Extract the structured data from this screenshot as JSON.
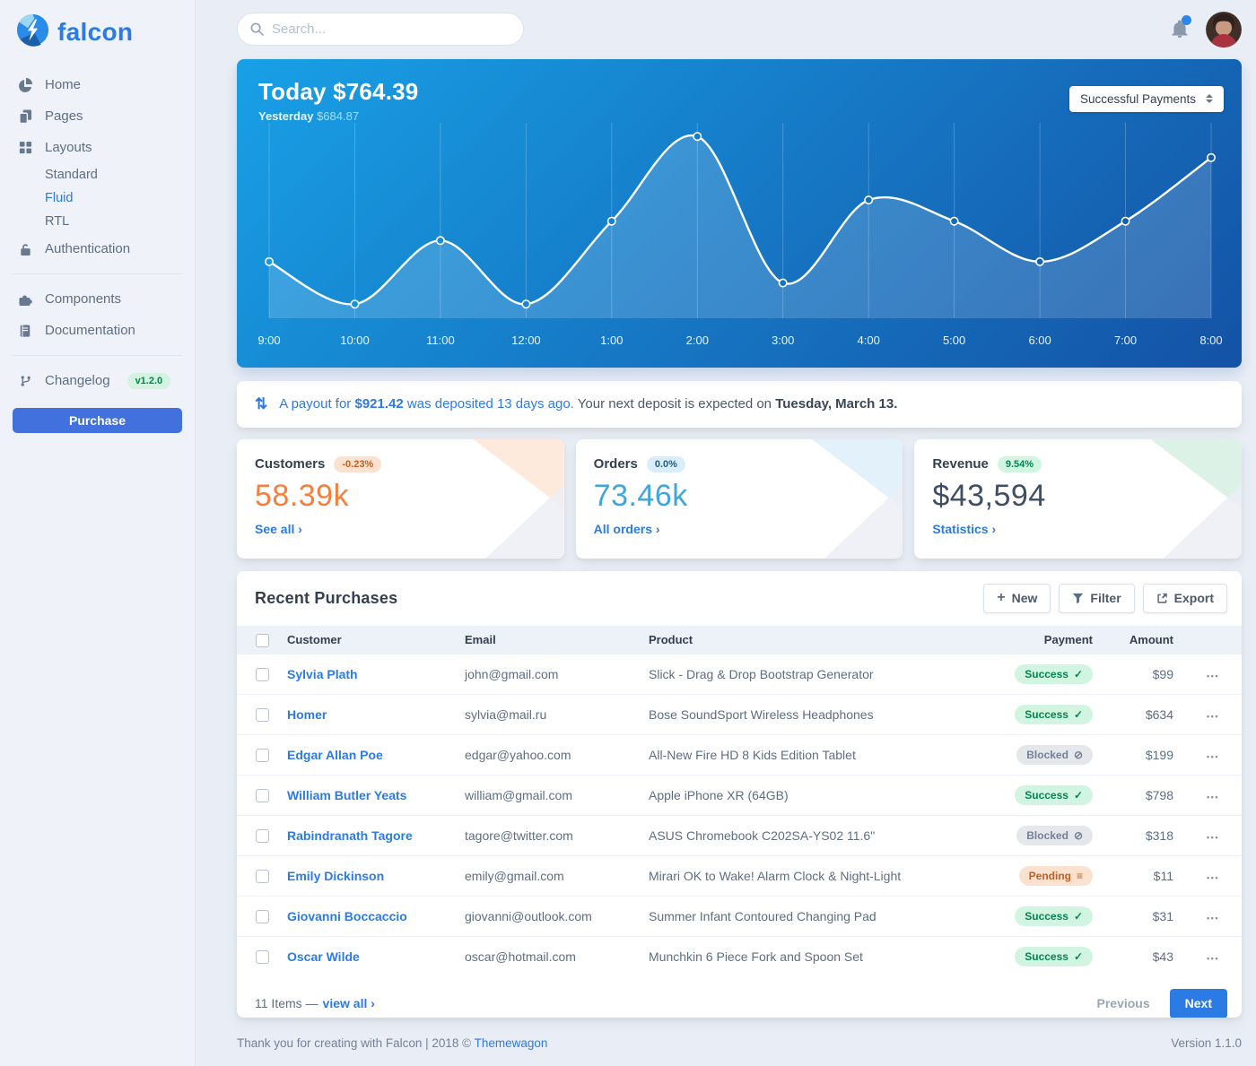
{
  "theme": {
    "primary": "#2c7be5",
    "heading": "#344050",
    "body_text": "#5e6e82",
    "page_bg": "#e9eef6",
    "warning": "#f5803e",
    "info": "#3fa6dd",
    "chart_from": "#18a0e6",
    "chart_to": "#1452a5",
    "success_badge_bg": "#d2f5e2",
    "success_badge_text": "#00864e",
    "secondary_badge_bg": "#e4e7eb",
    "secondary_badge_text": "#748194",
    "warning_badge_bg": "#fbe2d0",
    "warning_badge_text": "#c05f21",
    "info_badge_bg": "#d9eefa",
    "info_badge_text": "#265d7c"
  },
  "brand": {
    "name": "falcon"
  },
  "sidebar": {
    "items": [
      {
        "label": "Home",
        "icon": "chart-pie-icon"
      },
      {
        "label": "Pages",
        "icon": "copy-icon"
      },
      {
        "label": "Layouts",
        "icon": "grid-icon"
      },
      {
        "label": "Authentication",
        "icon": "lock-icon"
      },
      {
        "label": "Components",
        "icon": "puzzle-icon"
      },
      {
        "label": "Documentation",
        "icon": "book-icon"
      },
      {
        "label": "Changelog",
        "icon": "code-branch-icon"
      }
    ],
    "layouts_children": [
      {
        "label": "Standard",
        "active": false
      },
      {
        "label": "Fluid",
        "active": true
      },
      {
        "label": "RTL",
        "active": false
      }
    ],
    "changelog_badge": "v1.2.0",
    "purchase_label": "Purchase"
  },
  "topbar": {
    "search_placeholder": "Search..."
  },
  "payments_card": {
    "today_label": "Today",
    "today_value": "$764.39",
    "yesterday_label": "Yesterday",
    "yesterday_value": "$684.87",
    "select_value": "Successful Payments"
  },
  "chart_data": {
    "type": "line",
    "title": "Successful Payments — Today $764.39",
    "x": [
      "9:00",
      "10:00",
      "11:00",
      "12:00",
      "1:00",
      "2:00",
      "3:00",
      "4:00",
      "5:00",
      "6:00",
      "7:00",
      "8:00"
    ],
    "series": [
      {
        "name": "Successful Payments",
        "values": [
          34,
          12,
          45,
          12,
          55,
          99,
          23,
          66,
          55,
          34,
          55,
          88
        ]
      }
    ],
    "ylim": [
      0,
      100
    ],
    "grid": "vertical",
    "line_color": "#ffffff",
    "area_fill": "rgba(255,255,255,0.16)"
  },
  "notice": {
    "icon": "payout-arrows-icon",
    "link_pre": "A payout for",
    "amount": "$921.42",
    "link_post": "was deposited 13 days ago.",
    "text": "Your next deposit is expected on",
    "date": "Tuesday, March 13."
  },
  "stats": [
    {
      "key": "customers",
      "title": "Customers",
      "badge": "-0.23%",
      "badge_bg": "#fbe2d0",
      "badge_color": "#c05f21",
      "value": "58.39k",
      "value_color": "#f5803e",
      "link": "See all"
    },
    {
      "key": "orders",
      "title": "Orders",
      "badge": "0.0%",
      "badge_bg": "#d9eefa",
      "badge_color": "#265d7c",
      "value": "73.46k",
      "value_color": "#3fa6dd",
      "link": "All orders"
    },
    {
      "key": "revenue",
      "title": "Revenue",
      "badge": "9.54%",
      "badge_bg": "#d2f5e2",
      "badge_color": "#00864e",
      "value": "$43,594",
      "value_color": "#404e63",
      "link": "Statistics"
    }
  ],
  "purchases": {
    "title": "Recent Purchases",
    "buttons": {
      "new": "New",
      "filter": "Filter",
      "export": "Export"
    },
    "columns": [
      "Customer",
      "Email",
      "Product",
      "Payment",
      "Amount"
    ],
    "rows": [
      {
        "customer": "Sylvia Plath",
        "email": "john@gmail.com",
        "product": "Slick - Drag & Drop Bootstrap Generator",
        "payment": "Success",
        "amount": "$99"
      },
      {
        "customer": "Homer",
        "email": "sylvia@mail.ru",
        "product": "Bose SoundSport Wireless Headphones",
        "payment": "Success",
        "amount": "$634"
      },
      {
        "customer": "Edgar Allan Poe",
        "email": "edgar@yahoo.com",
        "product": "All-New Fire HD 8 Kids Edition Tablet",
        "payment": "Blocked",
        "amount": "$199"
      },
      {
        "customer": "William Butler Yeats",
        "email": "william@gmail.com",
        "product": "Apple iPhone XR (64GB)",
        "payment": "Success",
        "amount": "$798"
      },
      {
        "customer": "Rabindranath Tagore",
        "email": "tagore@twitter.com",
        "product": "ASUS Chromebook C202SA-YS02 11.6\"",
        "payment": "Blocked",
        "amount": "$318"
      },
      {
        "customer": "Emily Dickinson",
        "email": "emily@gmail.com",
        "product": "Mirari OK to Wake! Alarm Clock & Night-Light",
        "payment": "Pending",
        "amount": "$11"
      },
      {
        "customer": "Giovanni Boccaccio",
        "email": "giovanni@outlook.com",
        "product": "Summer Infant Contoured Changing Pad",
        "payment": "Success",
        "amount": "$31"
      },
      {
        "customer": "Oscar Wilde",
        "email": "oscar@hotmail.com",
        "product": "Munchkin 6 Piece Fork and Spoon Set",
        "payment": "Success",
        "amount": "$43"
      }
    ],
    "footer": {
      "items_text": "11 Items —",
      "view_all": "view all",
      "previous": "Previous",
      "next": "Next"
    }
  },
  "page_footer": {
    "thanks": "Thank you for creating with Falcon | 2018 ©",
    "link": "Themewagon",
    "version": "Version 1.1.0"
  }
}
